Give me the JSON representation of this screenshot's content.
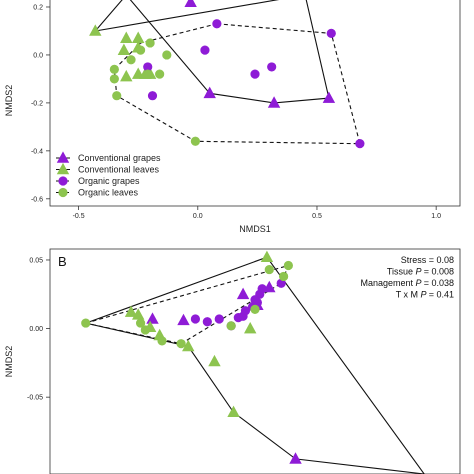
{
  "colors": {
    "grapes": "#8e1bd6",
    "leaves": "#8dc44f",
    "line": "#111111",
    "frame": "#333333"
  },
  "chart_data": [
    {
      "type": "scatter",
      "panel_label": "",
      "xlabel": "NMDS1",
      "ylabel": "NMDS2",
      "xlim": [
        -0.62,
        1.1
      ],
      "ylim": [
        -0.63,
        0.25
      ],
      "xticks": [
        "-0.5",
        "0.0",
        "0.5",
        "1.0"
      ],
      "xtick_values": [
        -0.5,
        0.0,
        0.5,
        1.0
      ],
      "yticks": [
        "0.2",
        "0.0",
        "-0.2",
        "-0.4",
        "-0.6"
      ],
      "ytick_values": [
        0.2,
        0.0,
        -0.2,
        -0.4,
        -0.6
      ],
      "legend": [
        {
          "label": "Conventional grapes",
          "marker": "triangle",
          "color": "grapes",
          "line": "solid"
        },
        {
          "label": "Conventional leaves",
          "marker": "triangle",
          "color": "leaves",
          "line": "solid"
        },
        {
          "label": "Organic grapes",
          "marker": "circle",
          "color": "grapes",
          "line": "dashed"
        },
        {
          "label": "Organic leaves",
          "marker": "circle",
          "color": "leaves",
          "line": "dashed"
        }
      ],
      "legend_position": "bottom-left",
      "series": [
        {
          "name": "Conventional grapes",
          "marker": "triangle",
          "color": "grapes",
          "x": [
            -0.1,
            -0.03,
            0.27,
            0.36,
            0.05,
            0.32,
            0.55
          ],
          "y": [
            0.25,
            0.22,
            0.25,
            0.25,
            -0.16,
            -0.2,
            -0.18
          ]
        },
        {
          "name": "Conventional leaves",
          "marker": "triangle",
          "color": "leaves",
          "x": [
            -0.43,
            -0.3,
            -0.25,
            -0.31,
            -0.25,
            -0.2,
            -0.25,
            -0.22,
            -0.3
          ],
          "y": [
            0.1,
            0.07,
            0.07,
            0.02,
            0.03,
            -0.08,
            -0.08,
            -0.08,
            -0.09
          ]
        },
        {
          "name": "Organic grapes",
          "marker": "circle",
          "color": "grapes",
          "x": [
            0.08,
            0.03,
            0.56,
            0.31,
            0.24,
            -0.21,
            -0.19,
            0.68
          ],
          "y": [
            0.13,
            0.02,
            0.09,
            -0.05,
            -0.08,
            -0.05,
            -0.17,
            -0.37
          ]
        },
        {
          "name": "Organic leaves",
          "marker": "circle",
          "color": "leaves",
          "x": [
            -0.2,
            -0.24,
            -0.28,
            -0.35,
            -0.35,
            -0.34,
            -0.21,
            -0.16,
            -0.13,
            -0.01
          ],
          "y": [
            0.05,
            0.02,
            -0.02,
            -0.06,
            -0.1,
            -0.17,
            -0.08,
            -0.08,
            0.0,
            -0.36
          ]
        }
      ],
      "hulls": [
        {
          "style": "solid",
          "x": [
            -0.43,
            -0.3,
            0.05,
            0.32,
            0.55,
            0.45
          ],
          "y": [
            0.1,
            0.25,
            -0.16,
            -0.2,
            -0.18,
            0.25
          ]
        },
        {
          "style": "dashed",
          "x": [
            0.08,
            0.56,
            0.68,
            -0.01,
            -0.34,
            -0.35,
            -0.24,
            0.08
          ],
          "y": [
            0.13,
            0.09,
            -0.37,
            -0.36,
            -0.17,
            -0.06,
            0.05,
            0.13
          ]
        }
      ]
    },
    {
      "type": "scatter",
      "panel_label": "B",
      "xlabel": "",
      "ylabel": "NMDS2",
      "xlim": [
        -0.62,
        1.1
      ],
      "ylim": [
        -0.106,
        0.058
      ],
      "yticks": [
        "0.05",
        "0.00",
        "-0.05"
      ],
      "ytick_values": [
        0.05,
        0.0,
        -0.05
      ],
      "annotations": [
        {
          "label": "Stress",
          "value": "= 0.08"
        },
        {
          "label": "Tissue",
          "p": "P",
          "value": "= 0.008"
        },
        {
          "label": "Management",
          "p": "P",
          "value": "= 0.038"
        },
        {
          "label": "T x M",
          "p": "P",
          "value": "= 0.41"
        }
      ],
      "series": [
        {
          "name": "Conventional grapes",
          "marker": "triangle",
          "color": "grapes",
          "x": [
            -0.19,
            -0.06,
            0.19,
            0.25,
            0.3,
            0.41
          ],
          "y": [
            0.007,
            0.006,
            0.025,
            0.017,
            0.03,
            -0.095
          ]
        },
        {
          "name": "Conventional leaves",
          "marker": "triangle",
          "color": "leaves",
          "x": [
            -0.28,
            -0.25,
            -0.2,
            -0.16,
            -0.04,
            0.07,
            0.22,
            0.29,
            0.15
          ],
          "y": [
            0.012,
            0.01,
            0.001,
            -0.005,
            -0.013,
            -0.024,
            0.0,
            0.052,
            -0.061
          ]
        },
        {
          "name": "Organic grapes",
          "marker": "circle",
          "color": "grapes",
          "x": [
            -0.01,
            0.04,
            0.09,
            0.14,
            0.17,
            0.19,
            0.2,
            0.23,
            0.25,
            0.26,
            0.24,
            0.27,
            0.35
          ],
          "y": [
            0.007,
            0.005,
            0.007,
            0.002,
            0.008,
            0.009,
            0.013,
            0.016,
            0.019,
            0.025,
            0.021,
            0.029,
            0.033
          ]
        },
        {
          "name": "Organic leaves",
          "marker": "circle",
          "color": "leaves",
          "x": [
            -0.47,
            -0.24,
            -0.22,
            -0.15,
            -0.07,
            0.3,
            0.36,
            0.38,
            0.24,
            0.14
          ],
          "y": [
            0.004,
            0.004,
            -0.001,
            -0.009,
            -0.011,
            0.043,
            0.038,
            0.046,
            0.014,
            0.002
          ]
        }
      ],
      "hulls": [
        {
          "style": "solid",
          "x": [
            -0.47,
            0.29,
            0.95,
            0.41,
            0.15,
            -0.04
          ],
          "y": [
            0.004,
            0.052,
            -0.106,
            -0.095,
            -0.061,
            -0.013
          ]
        },
        {
          "style": "dashed",
          "x": [
            -0.47,
            0.38,
            0.35,
            -0.07,
            -0.47
          ],
          "y": [
            0.004,
            0.046,
            0.033,
            -0.011,
            0.004
          ]
        }
      ]
    }
  ]
}
